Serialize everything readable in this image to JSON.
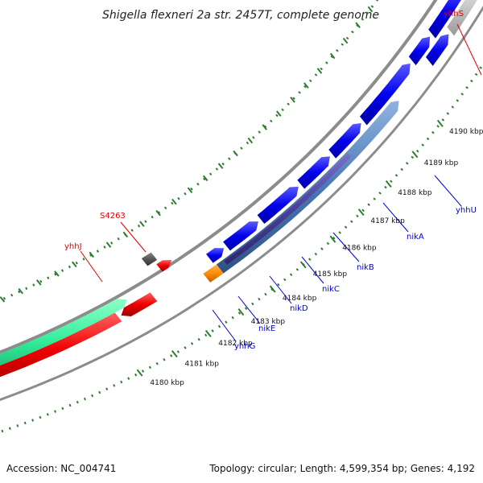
{
  "title": "Shigella flexneri 2a str. 2457T, complete genome",
  "footer": {
    "accession": "Accession: NC_004741",
    "summary": "Topology: circular; Length: 4,599,354 bp; Genes: 4,192"
  },
  "colors": {
    "forward_cds": "#0000ee",
    "reverse_cds": "#ee0000",
    "orange_feature": "#ff8c00",
    "teal_feature": "#33ee99",
    "operon_blue": "#4a78b5",
    "operon_purple": "#4b3f99",
    "gray_feature": "#cccccc",
    "backbone": "#8c8c8c",
    "tick_green": "#2e7d2e",
    "label_blue": "#0000cc",
    "label_red": "#dd0000"
  },
  "scale_ticks": [
    {
      "kbp": 4180,
      "label": "4180 kbp"
    },
    {
      "kbp": 4181,
      "label": "4181 kbp"
    },
    {
      "kbp": 4182,
      "label": "4182 kbp"
    },
    {
      "kbp": 4183,
      "label": "4183 kbp"
    },
    {
      "kbp": 4184,
      "label": "4184 kbp"
    },
    {
      "kbp": 4185,
      "label": "4185 kbp"
    },
    {
      "kbp": 4186,
      "label": "4186 kbp"
    },
    {
      "kbp": 4187,
      "label": "4187 kbp"
    },
    {
      "kbp": 4188,
      "label": "4188 kbp"
    },
    {
      "kbp": 4189,
      "label": "4189 kbp"
    },
    {
      "kbp": 4190,
      "label": "4190 kbp"
    }
  ],
  "gene_labels": {
    "yhhS": "yhhS",
    "S4263": "S4263",
    "yhhJ": "yhhJ",
    "yhhU": "yhhU",
    "nikA": "nikA",
    "nikB": "nikB",
    "nikC": "nikC",
    "nikD": "nikD",
    "nikE": "nikE",
    "yhhG": "yhhG"
  }
}
